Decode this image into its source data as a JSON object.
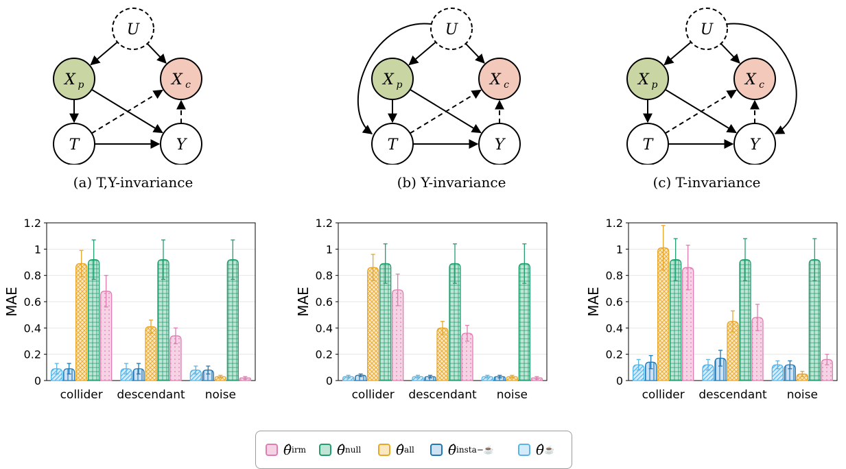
{
  "dags": [
    {
      "caption": "(a) T,Y-invariance",
      "nodes": {
        "U": "U",
        "Xp_main": "X",
        "Xp_sub": "p",
        "Xc_main": "X",
        "Xc_sub": "c",
        "T": "T",
        "Y": "Y"
      },
      "extra_edges": "none"
    },
    {
      "caption": "(b) Y-invariance",
      "nodes": {
        "U": "U",
        "Xp_main": "X",
        "Xp_sub": "p",
        "Xc_main": "X",
        "Xc_sub": "c",
        "T": "T",
        "Y": "Y"
      },
      "extra_edges": "U-to-T"
    },
    {
      "caption": "(c) T-invariance",
      "nodes": {
        "U": "U",
        "Xp_main": "X",
        "Xp_sub": "p",
        "Xc_main": "X",
        "Xc_sub": "c",
        "T": "T",
        "Y": "Y"
      },
      "extra_edges": "U-to-Y"
    }
  ],
  "colors": {
    "irm": "#e07cb3",
    "null": "#1f9e6e",
    "all": "#e8a628",
    "insta": "#1f77b4",
    "plain": "#58b4e6",
    "xp_fill": "#c9d6a3",
    "xc_fill": "#f3c9bb"
  },
  "legend": [
    {
      "key": "irm",
      "symbol": "θ̂",
      "sub": "irm"
    },
    {
      "key": "null",
      "symbol": "θ̂",
      "sub": "null"
    },
    {
      "key": "all",
      "symbol": "θ̂",
      "sub": "all"
    },
    {
      "key": "insta",
      "symbol": "θ̂",
      "sub": "insta−☕"
    },
    {
      "key": "plain",
      "symbol": "θ̂",
      "sub": "☕"
    }
  ],
  "chart_data": [
    {
      "type": "bar",
      "ylabel": "MAE",
      "ylim": [
        0,
        1.2
      ],
      "yticks": [
        "0",
        "0.2",
        "0.4",
        "0.6",
        "0.8",
        "1",
        "1.2"
      ],
      "categories": [
        "collider",
        "descendant",
        "noise"
      ],
      "series": [
        {
          "key": "plain",
          "values": [
            0.09,
            0.09,
            0.08
          ],
          "err": [
            0.04,
            0.04,
            0.03
          ]
        },
        {
          "key": "insta",
          "values": [
            0.09,
            0.09,
            0.08
          ],
          "err": [
            0.04,
            0.04,
            0.03
          ]
        },
        {
          "key": "all",
          "values": [
            0.89,
            0.41,
            0.03
          ],
          "err": [
            0.1,
            0.05,
            0.01
          ]
        },
        {
          "key": "null",
          "values": [
            0.92,
            0.92,
            0.92
          ],
          "err": [
            0.15,
            0.15,
            0.15
          ]
        },
        {
          "key": "irm",
          "values": [
            0.68,
            0.34,
            0.02
          ],
          "err": [
            0.12,
            0.06,
            0.01
          ]
        }
      ]
    },
    {
      "type": "bar",
      "ylabel": "MAE",
      "ylim": [
        0,
        1.2
      ],
      "yticks": [
        "0",
        "0.2",
        "0.4",
        "0.6",
        "0.8",
        "1",
        "1.2"
      ],
      "categories": [
        "collider",
        "descendant",
        "noise"
      ],
      "series": [
        {
          "key": "plain",
          "values": [
            0.03,
            0.03,
            0.03
          ],
          "err": [
            0.01,
            0.01,
            0.01
          ]
        },
        {
          "key": "insta",
          "values": [
            0.04,
            0.03,
            0.03
          ],
          "err": [
            0.01,
            0.01,
            0.01
          ]
        },
        {
          "key": "all",
          "values": [
            0.86,
            0.4,
            0.03
          ],
          "err": [
            0.1,
            0.05,
            0.01
          ]
        },
        {
          "key": "null",
          "values": [
            0.89,
            0.89,
            0.89
          ],
          "err": [
            0.15,
            0.15,
            0.15
          ]
        },
        {
          "key": "irm",
          "values": [
            0.69,
            0.36,
            0.02
          ],
          "err": [
            0.12,
            0.06,
            0.01
          ]
        }
      ]
    },
    {
      "type": "bar",
      "ylabel": "MAE",
      "ylim": [
        0,
        1.2
      ],
      "yticks": [
        "0",
        "0.2",
        "0.4",
        "0.6",
        "0.8",
        "1",
        "1.2"
      ],
      "categories": [
        "collider",
        "descendant",
        "noise"
      ],
      "series": [
        {
          "key": "plain",
          "values": [
            0.12,
            0.12,
            0.12
          ],
          "err": [
            0.04,
            0.04,
            0.03
          ]
        },
        {
          "key": "insta",
          "values": [
            0.14,
            0.17,
            0.12
          ],
          "err": [
            0.05,
            0.06,
            0.03
          ]
        },
        {
          "key": "all",
          "values": [
            1.01,
            0.45,
            0.05
          ],
          "err": [
            0.17,
            0.08,
            0.02
          ]
        },
        {
          "key": "null",
          "values": [
            0.92,
            0.92,
            0.92
          ],
          "err": [
            0.16,
            0.16,
            0.16
          ]
        },
        {
          "key": "irm",
          "values": [
            0.86,
            0.48,
            0.16
          ],
          "err": [
            0.17,
            0.1,
            0.04
          ]
        }
      ]
    }
  ]
}
